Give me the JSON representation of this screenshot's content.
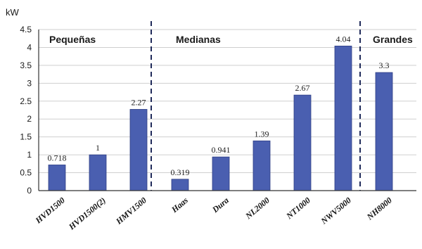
{
  "chart_data": {
    "type": "bar",
    "unit": "kW",
    "ylim": [
      0,
      4.5
    ],
    "yticks": [
      "0",
      "0.5",
      "1",
      "1.5",
      "2",
      "2.5",
      "3",
      "3.5",
      "4",
      "4.5"
    ],
    "grid": true,
    "categories": [
      "HVD1500",
      "HVD1500(2)",
      "HMV1500",
      "Haas",
      "Dura",
      "NL2000",
      "NT1000",
      "NWV5000",
      "NH8000"
    ],
    "values": [
      0.718,
      1,
      2.27,
      0.319,
      0.941,
      1.39,
      2.67,
      4.04,
      3.3
    ],
    "data_labels": [
      "0.718",
      "1",
      "2.27",
      "0.319",
      "0.941",
      "1.39",
      "2.67",
      "4.04",
      "3.3"
    ],
    "groups": [
      {
        "label": "Pequeñas",
        "from": 0,
        "to": 2
      },
      {
        "label": "Medianas",
        "from": 3,
        "to": 7
      },
      {
        "label": "Grandes",
        "from": 8,
        "to": 8
      }
    ],
    "colors": {
      "bar": "#4a5fb0",
      "bar_edge": "#2f3f85",
      "grid": "#cfcfcf",
      "axis": "#333333",
      "divider": "#1f2a5a"
    }
  }
}
